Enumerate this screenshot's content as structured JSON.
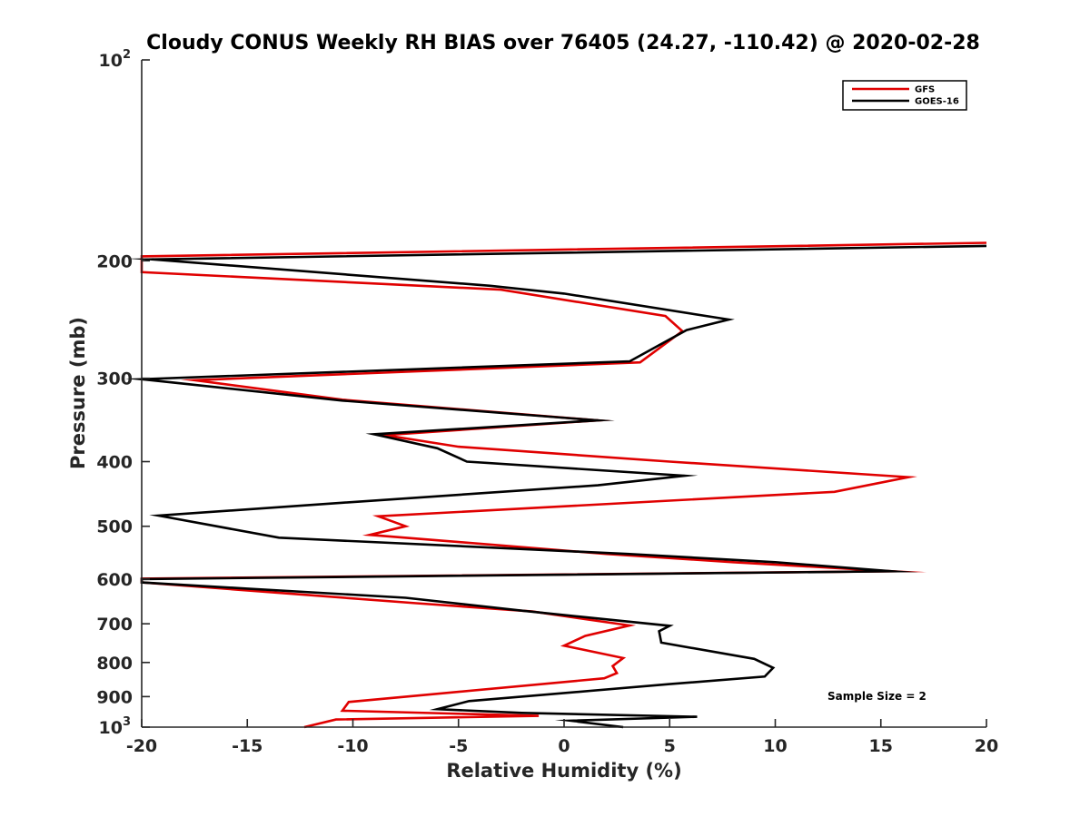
{
  "chart_data": {
    "type": "line",
    "title": "Cloudy CONUS Weekly RH BIAS over 76405 (24.27, -110.42) @ 2020-02-28",
    "xlabel": "Relative Humidity (%)",
    "ylabel": "Pressure (mb)",
    "xlim": [
      -20,
      20
    ],
    "ylim": [
      100,
      1000
    ],
    "y_scale": "log",
    "y_reversed": true,
    "x_ticks": [
      -20,
      -15,
      -10,
      -5,
      0,
      5,
      10,
      15,
      20
    ],
    "x_tick_labels": [
      "-20",
      "-15",
      "-10",
      "-5",
      "0",
      "5",
      "10",
      "15",
      "20"
    ],
    "y_ticks": [
      {
        "value": 100,
        "base": "10",
        "exp": "2"
      },
      {
        "value": 200,
        "label": "200"
      },
      {
        "value": 300,
        "label": "300"
      },
      {
        "value": 400,
        "label": "400"
      },
      {
        "value": 500,
        "label": "500"
      },
      {
        "value": 600,
        "label": "600"
      },
      {
        "value": 700,
        "label": "700"
      },
      {
        "value": 800,
        "label": "800"
      },
      {
        "value": 900,
        "label": "900"
      },
      {
        "value": 1000,
        "base": "10",
        "exp": "3"
      }
    ],
    "grid": false,
    "legend_position": "top-right",
    "annotation": "Sample Size = 2",
    "series": [
      {
        "name": "GFS",
        "color": "#e00000",
        "points": [
          [
            20,
            188
          ],
          [
            -20,
            197
          ],
          [
            -20,
            208
          ],
          [
            -3,
            221
          ],
          [
            4.8,
            242
          ],
          [
            5.6,
            255
          ],
          [
            3.6,
            284
          ],
          [
            -17.5,
            302
          ],
          [
            -10.5,
            323
          ],
          [
            1.6,
            347
          ],
          [
            -8.5,
            365
          ],
          [
            -5,
            380
          ],
          [
            5,
            400
          ],
          [
            16.3,
            422
          ],
          [
            12.8,
            444
          ],
          [
            -8.8,
            483
          ],
          [
            -7.5,
            500
          ],
          [
            -9.2,
            515
          ],
          [
            -5,
            528
          ],
          [
            2,
            550
          ],
          [
            8,
            566
          ],
          [
            15.5,
            584
          ],
          [
            -20,
            599
          ],
          [
            -20,
            607
          ],
          [
            -7,
            652
          ],
          [
            -1.5,
            671
          ],
          [
            3.1,
            704
          ],
          [
            1,
            730
          ],
          [
            0,
            755
          ],
          [
            2.8,
            788
          ],
          [
            2.3,
            810
          ],
          [
            2.5,
            830
          ],
          [
            1.9,
            845
          ],
          [
            -10.2,
            917
          ],
          [
            -10.5,
            945
          ],
          [
            -1.2,
            962
          ],
          [
            -10.8,
            974
          ],
          [
            -12.3,
            1000
          ]
        ]
      },
      {
        "name": "GOES-16",
        "color": "#000000",
        "points": [
          [
            20,
            190
          ],
          [
            -19.5,
            199
          ],
          [
            -3.5,
            218
          ],
          [
            0,
            224
          ],
          [
            7.8,
            245
          ],
          [
            5.8,
            254
          ],
          [
            3.1,
            283
          ],
          [
            -20,
            301
          ],
          [
            -10.5,
            324
          ],
          [
            1.6,
            347
          ],
          [
            -9,
            364
          ],
          [
            -6,
            382
          ],
          [
            -4.6,
            400
          ],
          [
            5.7,
            420
          ],
          [
            1.6,
            434
          ],
          [
            -10.5,
            461
          ],
          [
            -19.2,
            482
          ],
          [
            -13.5,
            520
          ],
          [
            3,
            550
          ],
          [
            10,
            566
          ],
          [
            15.5,
            584
          ],
          [
            -20,
            600
          ],
          [
            -20,
            607
          ],
          [
            -15,
            620
          ],
          [
            -7.5,
            640
          ],
          [
            -2,
            669
          ],
          [
            5,
            705
          ],
          [
            4.5,
            718
          ],
          [
            4.6,
            747
          ],
          [
            9,
            790
          ],
          [
            9.9,
            815
          ],
          [
            9.5,
            840
          ],
          [
            5,
            862
          ],
          [
            -4.5,
            914
          ],
          [
            -6,
            940
          ],
          [
            -2,
            952
          ],
          [
            6.3,
            965
          ],
          [
            0.3,
            978
          ],
          [
            2.8,
            1000
          ]
        ]
      }
    ]
  }
}
